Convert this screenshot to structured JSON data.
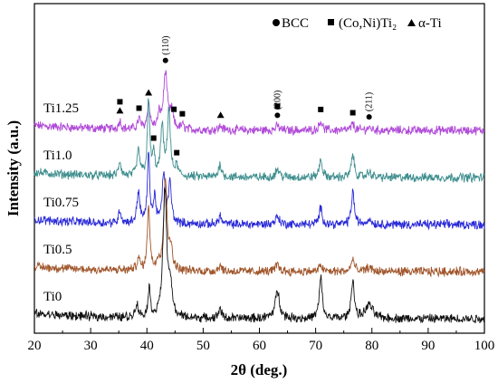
{
  "chart_data": {
    "type": "line",
    "title": "",
    "xlabel": "2θ (deg.)",
    "ylabel": "Intensity (a.u.)",
    "xlim": [
      20,
      100
    ],
    "x_ticks": [
      20,
      30,
      40,
      50,
      60,
      70,
      80,
      90,
      100
    ],
    "y_tick_labels_shown": false,
    "grid": false,
    "legend_placement": "top-right",
    "legend": [
      {
        "symbol": "circle",
        "name": "BCC"
      },
      {
        "symbol": "square",
        "name": "(Co,Ni)Ti₂"
      },
      {
        "symbol": "triangle",
        "name": "α-Ti"
      }
    ],
    "series": [
      {
        "name": "Ti1.25",
        "color": "#b04ad8",
        "offset": 4.0,
        "peaks": [
          {
            "x": 35.2,
            "h": 0.1,
            "w": 0.25
          },
          {
            "x": 38.6,
            "h": 0.12,
            "w": 0.3
          },
          {
            "x": 40.3,
            "h": 0.3,
            "w": 0.3
          },
          {
            "x": 42.2,
            "h": 0.16,
            "w": 0.3
          },
          {
            "x": 43.3,
            "h": 0.68,
            "w": 0.4
          },
          {
            "x": 44.4,
            "h": 0.2,
            "w": 0.3
          },
          {
            "x": 46.3,
            "h": 0.05,
            "w": 0.3
          },
          {
            "x": 53.1,
            "h": 0.05,
            "w": 0.3
          },
          {
            "x": 63.2,
            "h": 0.05,
            "w": 0.4
          },
          {
            "x": 70.9,
            "h": 0.12,
            "w": 0.3
          },
          {
            "x": 76.6,
            "h": 0.08,
            "w": 0.3
          },
          {
            "x": 79.5,
            "h": 0.03,
            "w": 0.5
          }
        ]
      },
      {
        "name": "Ti1.0",
        "color": "#3f8e8e",
        "offset": 3.0,
        "peaks": [
          {
            "x": 35.2,
            "h": 0.18,
            "w": 0.25
          },
          {
            "x": 38.5,
            "h": 0.3,
            "w": 0.3
          },
          {
            "x": 40.3,
            "h": 0.9,
            "w": 0.25
          },
          {
            "x": 41.2,
            "h": 0.24,
            "w": 0.25
          },
          {
            "x": 42.7,
            "h": 0.6,
            "w": 0.3
          },
          {
            "x": 43.9,
            "h": 0.8,
            "w": 0.3
          },
          {
            "x": 45.3,
            "h": 0.12,
            "w": 0.3
          },
          {
            "x": 53.0,
            "h": 0.16,
            "w": 0.3
          },
          {
            "x": 63.2,
            "h": 0.1,
            "w": 0.4
          },
          {
            "x": 70.9,
            "h": 0.22,
            "w": 0.3
          },
          {
            "x": 76.6,
            "h": 0.28,
            "w": 0.3
          },
          {
            "x": 79.5,
            "h": 0.06,
            "w": 0.5
          }
        ]
      },
      {
        "name": "Ti0.75",
        "color": "#2a2ad8",
        "offset": 2.0,
        "peaks": [
          {
            "x": 35.2,
            "h": 0.16,
            "w": 0.25
          },
          {
            "x": 38.5,
            "h": 0.38,
            "w": 0.3
          },
          {
            "x": 40.3,
            "h": 0.82,
            "w": 0.25
          },
          {
            "x": 41.4,
            "h": 0.3,
            "w": 0.25
          },
          {
            "x": 43.0,
            "h": 0.6,
            "w": 0.3
          },
          {
            "x": 44.1,
            "h": 0.48,
            "w": 0.3
          },
          {
            "x": 53.0,
            "h": 0.1,
            "w": 0.3
          },
          {
            "x": 63.2,
            "h": 0.1,
            "w": 0.4
          },
          {
            "x": 70.9,
            "h": 0.2,
            "w": 0.3
          },
          {
            "x": 76.6,
            "h": 0.4,
            "w": 0.3
          },
          {
            "x": 79.5,
            "h": 0.06,
            "w": 0.5
          }
        ]
      },
      {
        "name": "Ti0.5",
        "color": "#a0552a",
        "offset": 1.0,
        "peaks": [
          {
            "x": 38.5,
            "h": 0.14,
            "w": 0.3
          },
          {
            "x": 40.3,
            "h": 0.8,
            "w": 0.25
          },
          {
            "x": 42.0,
            "h": 0.12,
            "w": 0.3
          },
          {
            "x": 43.3,
            "h": 1.1,
            "w": 0.35
          },
          {
            "x": 44.3,
            "h": 0.25,
            "w": 0.3
          },
          {
            "x": 53.0,
            "h": 0.08,
            "w": 0.3
          },
          {
            "x": 63.2,
            "h": 0.08,
            "w": 0.4
          },
          {
            "x": 70.9,
            "h": 0.08,
            "w": 0.3
          },
          {
            "x": 76.6,
            "h": 0.16,
            "w": 0.3
          },
          {
            "x": 79.5,
            "h": 0.05,
            "w": 0.5
          }
        ]
      },
      {
        "name": "Ti0",
        "color": "#111111",
        "offset": 0.0,
        "peaks": [
          {
            "x": 38.2,
            "h": 0.16,
            "w": 0.3
          },
          {
            "x": 40.4,
            "h": 0.34,
            "w": 0.25
          },
          {
            "x": 43.2,
            "h": 1.55,
            "w": 0.4
          },
          {
            "x": 44.2,
            "h": 0.35,
            "w": 0.3
          },
          {
            "x": 53.0,
            "h": 0.12,
            "w": 0.3
          },
          {
            "x": 63.2,
            "h": 0.32,
            "w": 0.5
          },
          {
            "x": 70.9,
            "h": 0.5,
            "w": 0.3
          },
          {
            "x": 76.6,
            "h": 0.48,
            "w": 0.3
          },
          {
            "x": 79.5,
            "h": 0.16,
            "w": 0.8
          }
        ]
      }
    ],
    "peak_markers": [
      {
        "x": 35.2,
        "series": "Ti1.25",
        "symbol": "square",
        "stack": 1
      },
      {
        "x": 35.2,
        "series": "Ti1.25",
        "symbol": "triangle",
        "stack": 0
      },
      {
        "x": 38.6,
        "series": "Ti1.25",
        "symbol": "square",
        "stack": 0
      },
      {
        "x": 40.3,
        "series": "Ti1.25",
        "symbol": "triangle",
        "stack": 0
      },
      {
        "x": 43.3,
        "series": "Ti1.25",
        "symbol": "circle",
        "stack": 0,
        "label": "(110)"
      },
      {
        "x": 44.8,
        "series": "Ti1.25",
        "symbol": "square",
        "stack": 0
      },
      {
        "x": 46.3,
        "series": "Ti1.25",
        "symbol": "square",
        "stack": 0
      },
      {
        "x": 53.1,
        "series": "Ti1.25",
        "symbol": "triangle",
        "stack": 0
      },
      {
        "x": 63.2,
        "series": "Ti1.25",
        "symbol": "square",
        "stack": 1
      },
      {
        "x": 63.2,
        "series": "Ti1.25",
        "symbol": "circle",
        "stack": 0,
        "label": "(200)"
      },
      {
        "x": 70.9,
        "series": "Ti1.25",
        "symbol": "square",
        "stack": 0
      },
      {
        "x": 76.6,
        "series": "Ti1.25",
        "symbol": "square",
        "stack": 0
      },
      {
        "x": 79.5,
        "series": "Ti1.25",
        "symbol": "circle",
        "stack": 0,
        "label": "(211)"
      },
      {
        "x": 41.2,
        "series": "Ti1.0",
        "symbol": "square",
        "stack": 0
      },
      {
        "x": 45.3,
        "series": "Ti1.0",
        "symbol": "square",
        "stack": 0
      }
    ]
  }
}
